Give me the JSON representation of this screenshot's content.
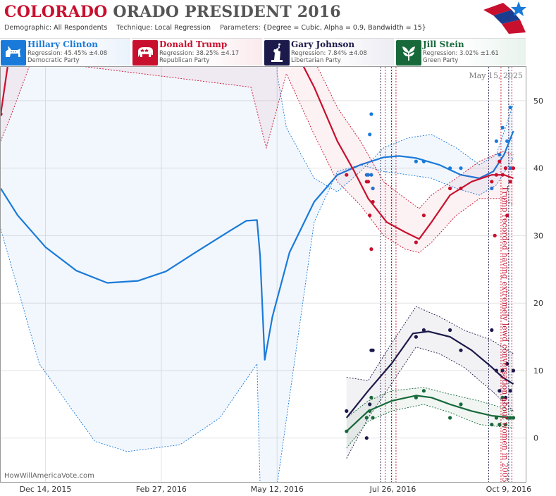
{
  "header": {
    "title_part1": "COLORADO",
    "title_part2": "ORADO PRESIDENT 2016",
    "demographic_label": "Demographic:",
    "demographic_value": "All Respondents",
    "technique_label": "Technique:",
    "technique_value": "Local Regression",
    "parameters_label": "Parameters:",
    "parameters_value": "{Degree = Cubic, Alpha = 0.9, Bandwidth = 15}"
  },
  "candidates": [
    {
      "name": "Hillary Clinton",
      "regression": "Regression: 45.45% ±4.08",
      "party": "Democratic Party",
      "color": "#1a7ad9",
      "icon": "donkey-icon"
    },
    {
      "name": "Donald Trump",
      "regression": "Regression: 38.25% ±4.17",
      "party": "Republican Party",
      "color": "#c8102e",
      "icon": "elephant-icon"
    },
    {
      "name": "Gary Johnson",
      "regression": "Regression: 7.84% ±4.08",
      "party": "Libertarian Party",
      "color": "#1c1a4a",
      "icon": "statue-of-liberty-icon"
    },
    {
      "name": "Jill Stein",
      "regression": "Regression: 3.02% ±1.61",
      "party": "Green Party",
      "color": "#17693a",
      "icon": "leaf-icon"
    }
  ],
  "chart_data": {
    "type": "line",
    "date_label": "May 15, 2025",
    "watermark": "HowWillAmericaVote.com",
    "annotation": "Trump recorded having extremely lewd conversation about women in 2005",
    "x_ticks": [
      {
        "date": "2015-12-14",
        "label": "Dec 14, 2015"
      },
      {
        "date": "2016-02-27",
        "label": "Feb 27, 2016"
      },
      {
        "date": "2016-05-12",
        "label": "May 12, 2016"
      },
      {
        "date": "2016-07-26",
        "label": "Jul 26, 2016"
      },
      {
        "date": "2016-10-09",
        "label": "Oct 9, 2016"
      }
    ],
    "x_range": [
      "2015-11-15",
      "2016-10-20"
    ],
    "y_ticks": [
      0,
      10,
      20,
      30,
      40,
      50
    ],
    "y_range": [
      -6.5,
      55
    ],
    "grid": true,
    "event_lines": [
      {
        "date": "2016-07-18",
        "color": "#1c1a4a"
      },
      {
        "date": "2016-07-21",
        "color": "#c8102e"
      },
      {
        "date": "2016-07-25",
        "color": "#1c1a4a"
      },
      {
        "date": "2016-07-28",
        "color": "#c8102e"
      },
      {
        "date": "2016-09-26",
        "color": "#1c1a4a"
      },
      {
        "date": "2016-10-04",
        "color": "#c8102e"
      },
      {
        "date": "2016-10-09",
        "color": "#1c1a4a"
      },
      {
        "date": "2016-10-11",
        "color": "#c8102e"
      }
    ],
    "series": [
      {
        "name": "Hillary Clinton",
        "color": "#1a7ad9",
        "line": [
          [
            "2015-11-15",
            37
          ],
          [
            "2015-11-26",
            33
          ],
          [
            "2015-12-14",
            28.3
          ],
          [
            "2016-01-03",
            24.8
          ],
          [
            "2016-01-23",
            23
          ],
          [
            "2016-02-12",
            23.3
          ],
          [
            "2016-03-01",
            24.7
          ],
          [
            "2016-03-20",
            27.5
          ],
          [
            "2016-04-10",
            30.5
          ],
          [
            "2016-04-22",
            32.2
          ],
          [
            "2016-04-29",
            32.3
          ],
          [
            "2016-05-01",
            27
          ],
          [
            "2016-05-04",
            11.6
          ],
          [
            "2016-05-09",
            18
          ],
          [
            "2016-05-20",
            27.5
          ],
          [
            "2016-06-05",
            35
          ],
          [
            "2016-06-20",
            39
          ],
          [
            "2016-07-05",
            40.5
          ],
          [
            "2016-07-20",
            41.6
          ],
          [
            "2016-07-30",
            41.8
          ],
          [
            "2016-08-10",
            41.5
          ],
          [
            "2016-08-25",
            40.5
          ],
          [
            "2016-09-08",
            39
          ],
          [
            "2016-09-20",
            38.5
          ],
          [
            "2016-09-29",
            39.5
          ],
          [
            "2016-10-06",
            42
          ],
          [
            "2016-10-12",
            45.5
          ]
        ],
        "upper": [
          [
            "2015-11-15",
            56
          ],
          [
            "2015-12-10",
            61
          ],
          [
            "2016-02-27",
            62
          ],
          [
            "2016-05-12",
            58
          ],
          [
            "2016-05-12",
            54
          ],
          [
            "2016-05-18",
            46
          ],
          [
            "2016-06-05",
            38.5
          ],
          [
            "2016-06-20",
            36.5
          ],
          [
            "2016-07-05",
            39.5
          ],
          [
            "2016-07-20",
            43
          ],
          [
            "2016-08-05",
            44.5
          ],
          [
            "2016-08-20",
            45
          ],
          [
            "2016-09-05",
            43
          ],
          [
            "2016-09-20",
            40.5
          ],
          [
            "2016-10-01",
            42
          ],
          [
            "2016-10-12",
            49.5
          ]
        ],
        "lower": [
          [
            "2015-11-15",
            31
          ],
          [
            "2015-12-10",
            11
          ],
          [
            "2016-01-15",
            -0.5
          ],
          [
            "2016-02-05",
            -2
          ],
          [
            "2016-03-10",
            -1
          ],
          [
            "2016-04-05",
            3
          ],
          [
            "2016-04-29",
            11
          ],
          [
            "2016-05-01",
            -7
          ],
          [
            "2016-05-12",
            -7
          ],
          [
            "2016-06-05",
            32
          ],
          [
            "2016-06-20",
            39.5
          ],
          [
            "2016-07-05",
            40.5
          ],
          [
            "2016-07-20",
            39.5
          ],
          [
            "2016-08-05",
            39
          ],
          [
            "2016-08-20",
            38.5
          ],
          [
            "2016-09-05",
            37
          ],
          [
            "2016-09-20",
            36
          ],
          [
            "2016-10-01",
            37.5
          ],
          [
            "2016-10-12",
            41.5
          ]
        ],
        "points": [
          [
            "2016-07-09",
            39
          ],
          [
            "2016-07-10",
            39
          ],
          [
            "2016-07-11",
            45
          ],
          [
            "2016-07-12",
            48
          ],
          [
            "2016-07-12",
            39
          ],
          [
            "2016-07-13",
            37
          ],
          [
            "2016-08-10",
            41
          ],
          [
            "2016-08-15",
            41
          ],
          [
            "2016-09-01",
            40
          ],
          [
            "2016-09-08",
            40
          ],
          [
            "2016-09-28",
            37
          ],
          [
            "2016-10-01",
            44
          ],
          [
            "2016-10-03",
            42
          ],
          [
            "2016-10-05",
            46
          ],
          [
            "2016-10-07",
            40
          ],
          [
            "2016-10-08",
            44
          ],
          [
            "2016-10-10",
            49
          ],
          [
            "2016-10-10",
            40
          ]
        ]
      },
      {
        "name": "Donald Trump",
        "color": "#c8102e",
        "line": [
          [
            "2015-11-15",
            48
          ],
          [
            "2015-11-22",
            59
          ],
          [
            "2015-12-14",
            70
          ],
          [
            "2016-04-25",
            60
          ],
          [
            "2016-05-18",
            60
          ],
          [
            "2016-06-05",
            52
          ],
          [
            "2016-06-20",
            44
          ],
          [
            "2016-07-01",
            39.5
          ],
          [
            "2016-07-10",
            35.5
          ],
          [
            "2016-07-22",
            32
          ],
          [
            "2016-08-03",
            30.5
          ],
          [
            "2016-08-12",
            29.5
          ],
          [
            "2016-08-20",
            32
          ],
          [
            "2016-09-01",
            36
          ],
          [
            "2016-09-15",
            38
          ],
          [
            "2016-09-28",
            39
          ],
          [
            "2016-10-06",
            39
          ],
          [
            "2016-10-12",
            38.5
          ]
        ],
        "upper": [
          [
            "2015-11-15",
            57
          ],
          [
            "2015-11-22",
            69
          ],
          [
            "2015-12-14",
            75
          ],
          [
            "2016-04-25",
            60
          ],
          [
            "2016-05-18",
            64
          ],
          [
            "2016-06-05",
            56
          ],
          [
            "2016-06-20",
            49
          ],
          [
            "2016-07-05",
            44
          ],
          [
            "2016-07-20",
            38
          ],
          [
            "2016-08-03",
            35.5
          ],
          [
            "2016-08-12",
            34
          ],
          [
            "2016-08-20",
            36
          ],
          [
            "2016-09-05",
            38.5
          ],
          [
            "2016-09-20",
            41
          ],
          [
            "2016-10-05",
            42.5
          ],
          [
            "2016-10-12",
            42
          ]
        ],
        "lower": [
          [
            "2015-11-15",
            44
          ],
          [
            "2015-11-22",
            48
          ],
          [
            "2015-12-05",
            56
          ],
          [
            "2016-04-25",
            52
          ],
          [
            "2016-05-05",
            43
          ],
          [
            "2016-05-18",
            54
          ],
          [
            "2016-06-05",
            45
          ],
          [
            "2016-06-20",
            38
          ],
          [
            "2016-07-05",
            34.5
          ],
          [
            "2016-07-20",
            30
          ],
          [
            "2016-08-03",
            28
          ],
          [
            "2016-08-12",
            27.5
          ],
          [
            "2016-08-20",
            29
          ],
          [
            "2016-09-05",
            33
          ],
          [
            "2016-09-20",
            35.5
          ],
          [
            "2016-10-05",
            35.5
          ],
          [
            "2016-10-12",
            34.5
          ]
        ],
        "points": [
          [
            "2015-11-15",
            48
          ],
          [
            "2016-06-26",
            39
          ],
          [
            "2016-07-09",
            38
          ],
          [
            "2016-07-10",
            38
          ],
          [
            "2016-07-11",
            33
          ],
          [
            "2016-07-12",
            28
          ],
          [
            "2016-07-13",
            35
          ],
          [
            "2016-08-10",
            29
          ],
          [
            "2016-08-15",
            33
          ],
          [
            "2016-09-01",
            37
          ],
          [
            "2016-09-08",
            37
          ],
          [
            "2016-09-28",
            38
          ],
          [
            "2016-09-30",
            30
          ],
          [
            "2016-10-01",
            39
          ],
          [
            "2016-10-03",
            41
          ],
          [
            "2016-10-05",
            39
          ],
          [
            "2016-10-07",
            40
          ],
          [
            "2016-10-08",
            33
          ],
          [
            "2016-10-10",
            38
          ],
          [
            "2016-10-12",
            40
          ]
        ]
      },
      {
        "name": "Gary Johnson",
        "color": "#1c1a4a",
        "line": [
          [
            "2016-06-26",
            3
          ],
          [
            "2016-07-10",
            7
          ],
          [
            "2016-07-25",
            11
          ],
          [
            "2016-08-08",
            15.5
          ],
          [
            "2016-08-18",
            15.8
          ],
          [
            "2016-09-01",
            15
          ],
          [
            "2016-09-15",
            13
          ],
          [
            "2016-09-28",
            10.5
          ],
          [
            "2016-10-05",
            9
          ],
          [
            "2016-10-12",
            8
          ]
        ],
        "upper": [
          [
            "2016-06-26",
            9
          ],
          [
            "2016-07-10",
            8.5
          ],
          [
            "2016-07-25",
            14
          ],
          [
            "2016-08-10",
            19.5
          ],
          [
            "2016-08-25",
            18
          ],
          [
            "2016-09-10",
            16
          ],
          [
            "2016-09-28",
            14.5
          ],
          [
            "2016-10-12",
            12.5
          ]
        ],
        "lower": [
          [
            "2016-06-26",
            -3
          ],
          [
            "2016-07-10",
            3
          ],
          [
            "2016-07-25",
            8
          ],
          [
            "2016-08-10",
            13.5
          ],
          [
            "2016-08-25",
            12.5
          ],
          [
            "2016-09-10",
            10.5
          ],
          [
            "2016-09-28",
            7
          ],
          [
            "2016-10-12",
            4
          ]
        ],
        "points": [
          [
            "2016-06-26",
            4
          ],
          [
            "2016-07-09",
            0
          ],
          [
            "2016-07-11",
            5
          ],
          [
            "2016-07-12",
            13
          ],
          [
            "2016-07-13",
            13
          ],
          [
            "2016-08-10",
            15
          ],
          [
            "2016-08-15",
            16
          ],
          [
            "2016-09-01",
            16
          ],
          [
            "2016-09-08",
            13
          ],
          [
            "2016-09-28",
            16
          ],
          [
            "2016-10-01",
            10
          ],
          [
            "2016-10-03",
            7
          ],
          [
            "2016-10-05",
            10
          ],
          [
            "2016-10-07",
            6
          ],
          [
            "2016-10-08",
            11
          ],
          [
            "2016-10-10",
            7
          ],
          [
            "2016-10-12",
            10
          ]
        ]
      },
      {
        "name": "Jill Stein",
        "color": "#17693a",
        "line": [
          [
            "2016-06-26",
            1
          ],
          [
            "2016-07-10",
            4
          ],
          [
            "2016-07-25",
            5.5
          ],
          [
            "2016-08-10",
            6.3
          ],
          [
            "2016-08-20",
            6
          ],
          [
            "2016-09-01",
            5
          ],
          [
            "2016-09-15",
            4
          ],
          [
            "2016-09-28",
            3.3
          ],
          [
            "2016-10-12",
            3
          ]
        ],
        "upper": [
          [
            "2016-06-26",
            3
          ],
          [
            "2016-07-10",
            5.5
          ],
          [
            "2016-07-25",
            7
          ],
          [
            "2016-08-15",
            7.5
          ],
          [
            "2016-09-01",
            6.5
          ],
          [
            "2016-09-20",
            5.5
          ],
          [
            "2016-10-12",
            4
          ]
        ],
        "lower": [
          [
            "2016-06-26",
            -1.5
          ],
          [
            "2016-07-10",
            2.5
          ],
          [
            "2016-07-25",
            4
          ],
          [
            "2016-08-15",
            5
          ],
          [
            "2016-09-01",
            3.8
          ],
          [
            "2016-09-20",
            2
          ],
          [
            "2016-10-12",
            1.5
          ]
        ],
        "points": [
          [
            "2016-06-26",
            1
          ],
          [
            "2016-07-09",
            3
          ],
          [
            "2016-07-11",
            4
          ],
          [
            "2016-07-12",
            6
          ],
          [
            "2016-07-13",
            3
          ],
          [
            "2016-08-10",
            6
          ],
          [
            "2016-08-15",
            7
          ],
          [
            "2016-09-01",
            3
          ],
          [
            "2016-09-08",
            5
          ],
          [
            "2016-09-28",
            2
          ],
          [
            "2016-10-01",
            3
          ],
          [
            "2016-10-03",
            2
          ],
          [
            "2016-10-05",
            6
          ],
          [
            "2016-10-07",
            2
          ],
          [
            "2016-10-08",
            3
          ],
          [
            "2016-10-10",
            3
          ],
          [
            "2016-10-12",
            3
          ]
        ]
      }
    ]
  }
}
